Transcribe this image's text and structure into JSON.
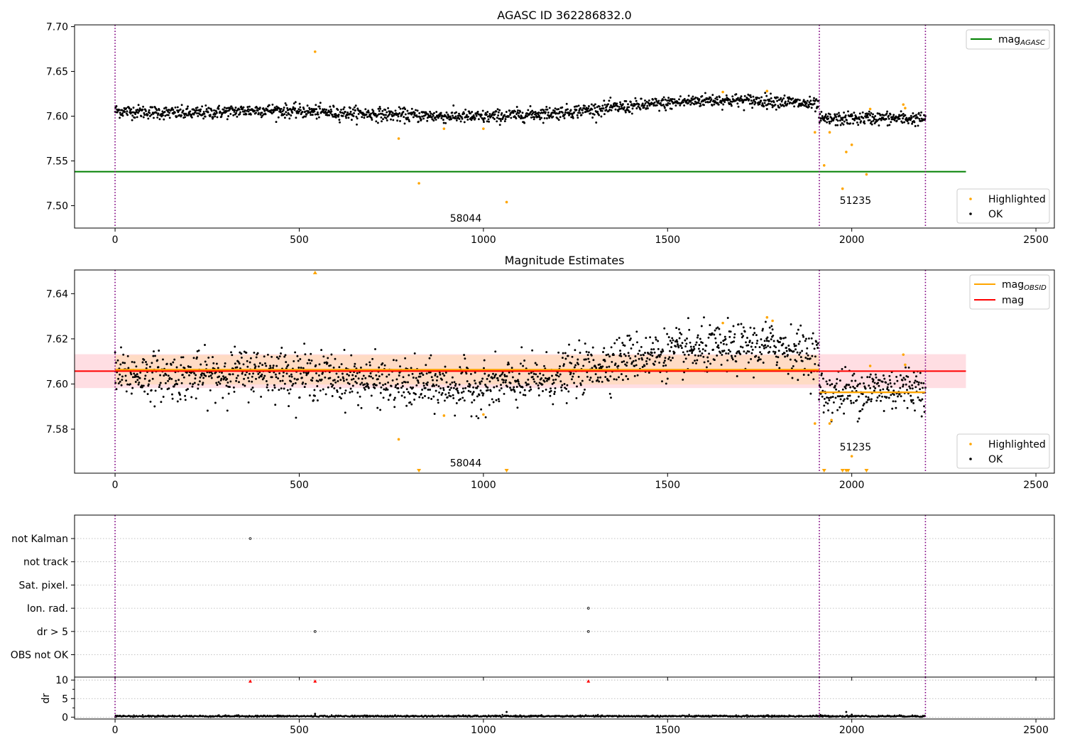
{
  "figure": {
    "top_title": "AGASC ID 362286832.0",
    "mid_title": "Magnitude Estimates"
  },
  "colors": {
    "ok": "#000000",
    "highlighted": "#ffa500",
    "mag_agasc": "#008000",
    "mag": "#ff0000",
    "mag_obsid": "#ffa500",
    "band_obsid": "#ffdab9",
    "band_mag": "#ffb6c1",
    "vline": "#800080",
    "grid": "#b0b0b0"
  },
  "chart_data": [
    {
      "id": "agasc",
      "type": "scatter",
      "title": "AGASC ID 362286832.0",
      "xlim": [
        -110,
        2550
      ],
      "ylim": [
        7.475,
        7.702
      ],
      "xticks": [
        0,
        500,
        1000,
        1500,
        2000,
        2500
      ],
      "yticks": [
        7.5,
        7.55,
        7.6,
        7.65,
        7.7
      ],
      "ytick_labels": [
        "7.50",
        "7.55",
        "7.60",
        "7.65",
        "7.70"
      ],
      "obs_boundaries": [
        0,
        1912,
        2200
      ],
      "obs_labels": [
        {
          "text": "58044",
          "x": 952,
          "y": 7.482
        },
        {
          "text": "51235",
          "x": 2010,
          "y": 7.502
        }
      ],
      "hlines": [
        {
          "label": "mag",
          "sub": "AGASC",
          "y": 7.538,
          "x0": -110,
          "x1": 2310
        }
      ],
      "legend_upper": [
        {
          "label": "mag",
          "sub": "AGASC"
        }
      ],
      "legend_lower": [
        "Highlighted",
        "OK"
      ],
      "ok_trend": [
        [
          0,
          7.606
        ],
        [
          200,
          7.603
        ],
        [
          400,
          7.607
        ],
        [
          600,
          7.604
        ],
        [
          800,
          7.601
        ],
        [
          1000,
          7.599
        ],
        [
          1200,
          7.604
        ],
        [
          1400,
          7.611
        ],
        [
          1600,
          7.618
        ],
        [
          1800,
          7.617
        ],
        [
          1910,
          7.612
        ],
        [
          1912,
          7.596
        ],
        [
          2050,
          7.598
        ],
        [
          2200,
          7.597
        ]
      ],
      "highlighted": [
        [
          543,
          7.672
        ],
        [
          770,
          7.575
        ],
        [
          825,
          7.525
        ],
        [
          893,
          7.586
        ],
        [
          1000,
          7.586
        ],
        [
          1063,
          7.504
        ],
        [
          1650,
          7.627
        ],
        [
          1770,
          7.628
        ],
        [
          1900,
          7.582
        ],
        [
          1925,
          7.545
        ],
        [
          1940,
          7.582
        ],
        [
          1975,
          7.519
        ],
        [
          1985,
          7.56
        ],
        [
          2000,
          7.568
        ],
        [
          2040,
          7.535
        ],
        [
          2050,
          7.608
        ],
        [
          2140,
          7.613
        ],
        [
          2145,
          7.609
        ]
      ]
    },
    {
      "id": "estimates",
      "type": "scatter",
      "title": "Magnitude Estimates",
      "xlim": [
        -110,
        2550
      ],
      "ylim": [
        7.5605,
        7.6505
      ],
      "xticks": [
        0,
        500,
        1000,
        1500,
        2000,
        2500
      ],
      "yticks": [
        7.58,
        7.6,
        7.62,
        7.64
      ],
      "ytick_labels": [
        "7.58",
        "7.60",
        "7.62",
        "7.64"
      ],
      "obs_boundaries": [
        0,
        1912,
        2200
      ],
      "obs_labels": [
        {
          "text": "58044",
          "x": 952,
          "y": 7.5635
        },
        {
          "text": "51235",
          "x": 2010,
          "y": 7.5705
        }
      ],
      "mag": {
        "y": 7.6057,
        "band": [
          7.5982,
          7.6132
        ],
        "x0": -110,
        "x1": 2310
      },
      "mag_obsid": [
        {
          "x0": 0,
          "x1": 1912,
          "y": 7.6063,
          "band": [
            7.5998,
            7.6128
          ]
        },
        {
          "x0": 1912,
          "x1": 2200,
          "y": 7.5963,
          "band": [
            7.5963,
            7.5963
          ]
        }
      ],
      "legend_upper": [
        {
          "label": "mag",
          "sub": "OBSID"
        },
        {
          "label": "mag",
          "sub": ""
        }
      ],
      "legend_lower": [
        "Highlighted",
        "OK"
      ],
      "ok_trend": [
        [
          0,
          7.6045
        ],
        [
          200,
          7.603
        ],
        [
          400,
          7.606
        ],
        [
          600,
          7.603
        ],
        [
          800,
          7.5995
        ],
        [
          1000,
          7.5985
        ],
        [
          1200,
          7.603
        ],
        [
          1400,
          7.612
        ],
        [
          1600,
          7.615
        ],
        [
          1800,
          7.617
        ],
        [
          1910,
          7.612
        ],
        [
          1912,
          7.5955
        ],
        [
          2050,
          7.5975
        ],
        [
          2200,
          7.599
        ]
      ],
      "highlighted": [
        [
          770,
          7.5755
        ],
        [
          893,
          7.586
        ],
        [
          1000,
          7.5865
        ],
        [
          1650,
          7.627
        ],
        [
          1770,
          7.6295
        ],
        [
          1785,
          7.628
        ],
        [
          1900,
          7.5825
        ],
        [
          1940,
          7.5825
        ],
        [
          1945,
          7.584
        ],
        [
          2000,
          7.568
        ],
        [
          2050,
          7.608
        ],
        [
          2140,
          7.613
        ],
        [
          2145,
          7.6085
        ]
      ],
      "highlighted_offscale_low": [
        825,
        1063,
        1925,
        1975,
        1985,
        1990,
        2040
      ],
      "highlighted_offscale_high": [
        543
      ]
    },
    {
      "id": "flags",
      "type": "scatter",
      "xlim": [
        -110,
        2550
      ],
      "xticks": [
        0,
        500,
        1000,
        1500,
        2000,
        2500
      ],
      "obs_boundaries": [
        0,
        1912,
        2200
      ],
      "categories": [
        "not Kalman",
        "not track",
        "Sat. pixel.",
        "Ion. rad.",
        "dr > 5",
        "OBS not OK"
      ],
      "points": [
        {
          "category": "not Kalman",
          "x": 367
        },
        {
          "category": "Ion. rad.",
          "x": 1285
        },
        {
          "category": "dr > 5",
          "x": 543
        },
        {
          "category": "dr > 5",
          "x": 1285
        }
      ]
    },
    {
      "id": "dr",
      "type": "scatter",
      "ylabel": "dr",
      "xlim": [
        -110,
        2550
      ],
      "ylim": [
        -0.5,
        10.8
      ],
      "xticks": [
        0,
        500,
        1000,
        1500,
        2000,
        2500
      ],
      "xtick_labels": [
        "0",
        "500",
        "1000",
        "1500",
        "2000",
        "2500"
      ],
      "yticks": [
        0,
        5,
        10
      ],
      "obs_boundaries": [
        0,
        1912,
        2200
      ],
      "clipped_high": [
        367,
        543,
        1285
      ],
      "ok_trend": [
        [
          0,
          0.25
        ],
        [
          2200,
          0.25
        ]
      ],
      "outliers": [
        [
          543,
          0.9
        ],
        [
          1063,
          1.4
        ],
        [
          1915,
          0.6
        ],
        [
          1985,
          1.4
        ],
        [
          2000,
          0.7
        ]
      ]
    }
  ]
}
